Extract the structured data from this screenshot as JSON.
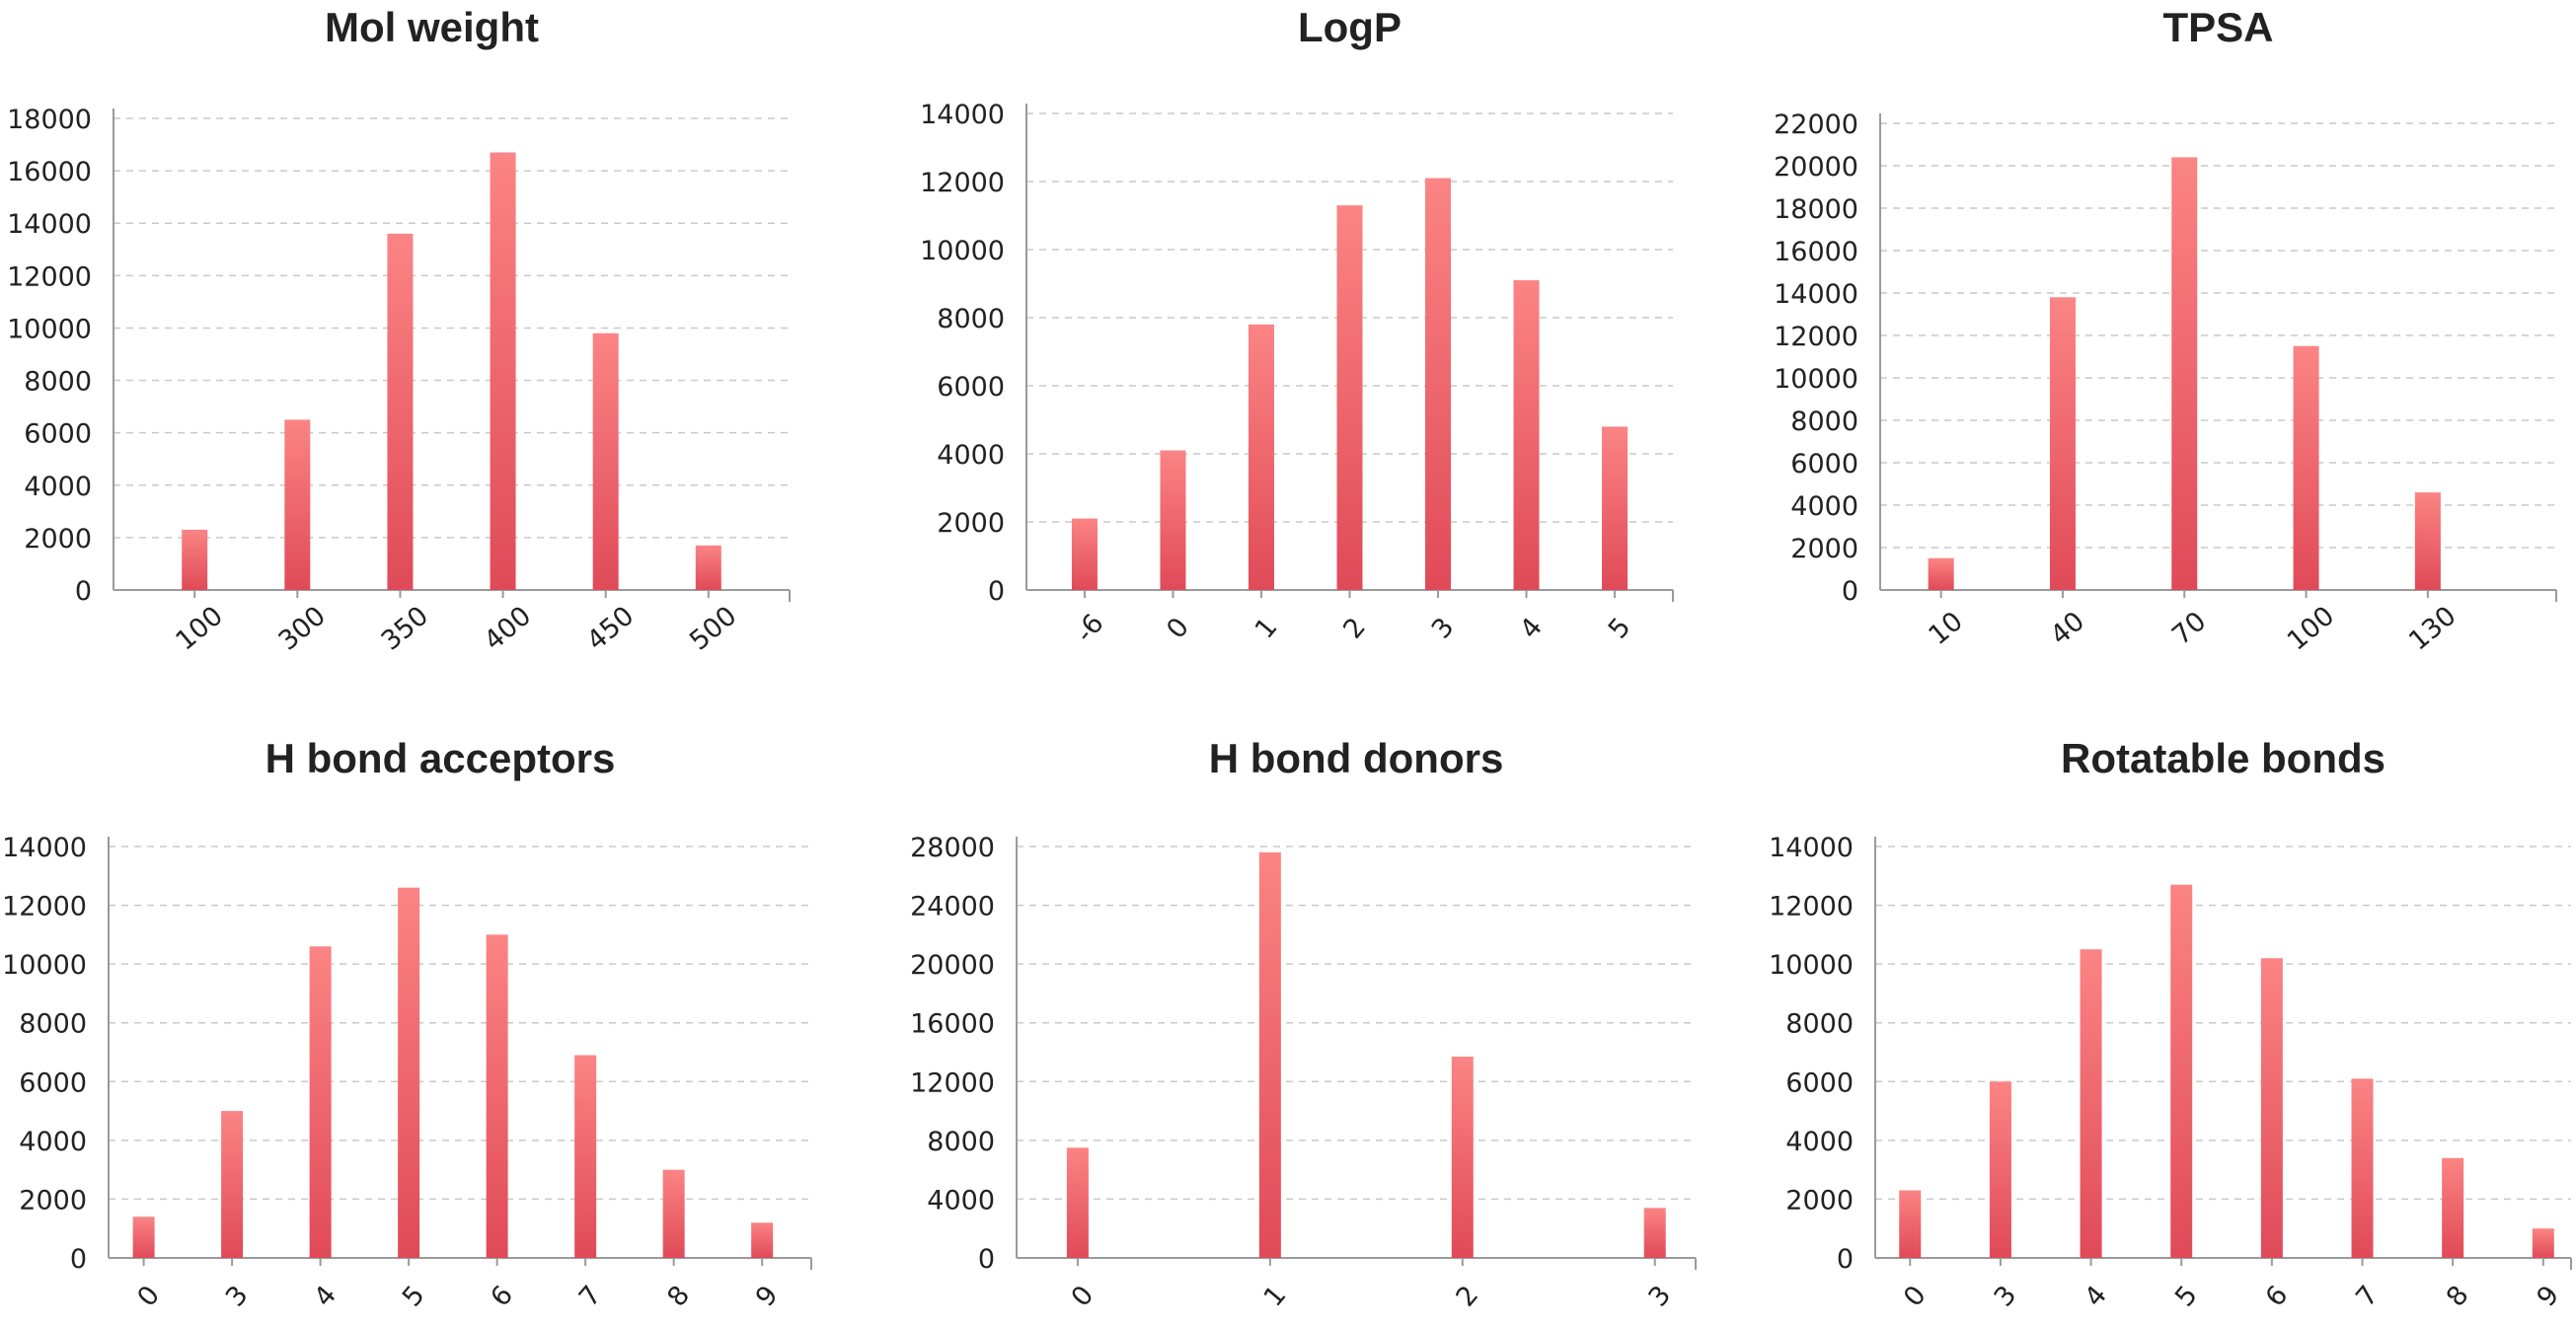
{
  "colors": {
    "bar_top": "#fb8484",
    "bar_bottom": "#e04a58",
    "text": "#222222",
    "grid": "#c9c9c9",
    "axis": "#9a9a9a"
  },
  "chart_data": [
    {
      "type": "bar",
      "title": "Mol weight",
      "xlabel": "",
      "ylabel": "",
      "categories": [
        "100",
        "300",
        "350",
        "400",
        "450",
        "500"
      ],
      "values": [
        2300,
        6500,
        13600,
        16700,
        9800,
        1700
      ],
      "yticks": [
        0,
        2000,
        4000,
        6000,
        8000,
        10000,
        12000,
        14000,
        16000,
        18000
      ],
      "ylim": [
        0,
        18000
      ],
      "x_label_rotation": -40,
      "grid": true
    },
    {
      "type": "bar",
      "title": "LogP",
      "xlabel": "",
      "ylabel": "",
      "categories": [
        "-6",
        "0",
        "1",
        "2",
        "3",
        "4",
        "5"
      ],
      "values": [
        2100,
        4100,
        7800,
        11300,
        12100,
        9100,
        4800
      ],
      "yticks": [
        0,
        2000,
        4000,
        6000,
        8000,
        10000,
        12000,
        14000
      ],
      "ylim": [
        0,
        14000
      ],
      "x_label_rotation": -50,
      "grid": true
    },
    {
      "type": "bar",
      "title": "TPSA",
      "xlabel": "",
      "ylabel": "",
      "categories": [
        "10",
        "40",
        "70",
        "100",
        "130"
      ],
      "values": [
        1500,
        13800,
        20400,
        11500,
        4600
      ],
      "yticks": [
        0,
        2000,
        4000,
        6000,
        8000,
        10000,
        12000,
        14000,
        16000,
        18000,
        20000,
        22000
      ],
      "ylim": [
        0,
        22000
      ],
      "x_label_rotation": -40,
      "grid": true
    },
    {
      "type": "bar",
      "title": "H bond acceptors",
      "xlabel": "",
      "ylabel": "",
      "categories": [
        "0",
        "3",
        "4",
        "5",
        "6",
        "7",
        "8",
        "9"
      ],
      "values": [
        1400,
        5000,
        10600,
        12600,
        11000,
        6900,
        3000,
        1200
      ],
      "yticks": [
        0,
        2000,
        4000,
        6000,
        8000,
        10000,
        12000,
        14000
      ],
      "ylim": [
        0,
        14000
      ],
      "x_label_rotation": -50,
      "grid": true
    },
    {
      "type": "bar",
      "title": "H  bond donors",
      "xlabel": "",
      "ylabel": "",
      "categories": [
        "0",
        "1",
        "2",
        "3"
      ],
      "values": [
        7500,
        27600,
        13700,
        3400
      ],
      "yticks": [
        0,
        4000,
        8000,
        12000,
        16000,
        20000,
        24000,
        28000
      ],
      "ylim": [
        0,
        28000
      ],
      "x_label_rotation": -50,
      "grid": true
    },
    {
      "type": "bar",
      "title": "Rotatable bonds",
      "xlabel": "",
      "ylabel": "",
      "categories": [
        "0",
        "3",
        "4",
        "5",
        "6",
        "7",
        "8",
        "9"
      ],
      "values": [
        2300,
        6000,
        10500,
        12700,
        10200,
        6100,
        3400,
        1000
      ],
      "yticks": [
        0,
        2000,
        4000,
        6000,
        8000,
        10000,
        12000,
        14000
      ],
      "ylim": [
        0,
        14000
      ],
      "x_label_rotation": -50,
      "grid": true
    }
  ]
}
